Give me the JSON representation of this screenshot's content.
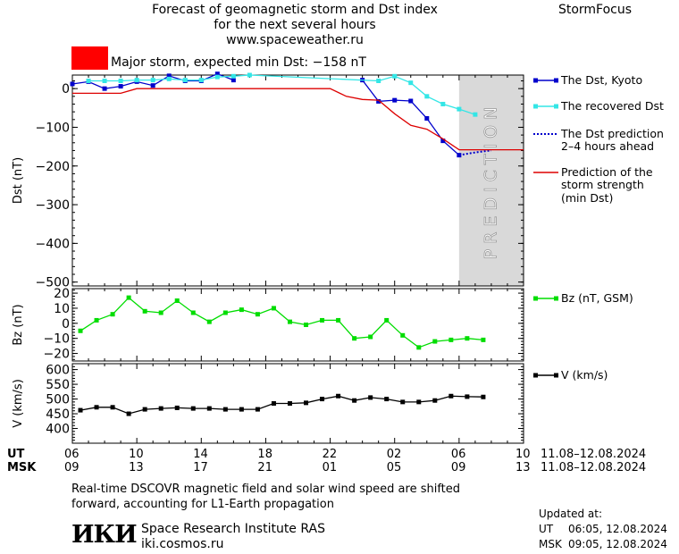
{
  "header": {
    "title_line1": "Forecast of geomagnetic storm and Dst index",
    "title_line2": "for the next several hours",
    "website": "www.spaceweather.ru",
    "brand": "StormFocus",
    "storm_text": "Major storm, expected min Dst: −158 nT",
    "storm_color": "#ff0000"
  },
  "prediction_label": "PREDICTION",
  "colors": {
    "dst_kyoto": "#0000cc",
    "dst_recovered": "#33e6e6",
    "dst_prediction": "#0000cc",
    "storm_strength": "#dd0000",
    "bz": "#00dd00",
    "v": "#000000",
    "prediction_band": "#d9d9d9"
  },
  "time_axis": {
    "ut_label": "UT",
    "msk_label": "MSK",
    "ut_ticks": [
      "06",
      "10",
      "14",
      "18",
      "22",
      "02",
      "06",
      "10"
    ],
    "msk_ticks": [
      "09",
      "13",
      "17",
      "21",
      "01",
      "05",
      "09",
      "13"
    ],
    "date_range": "11.08–12.08.2024"
  },
  "chart_data": [
    {
      "type": "line",
      "ylabel": "Dst (nT)",
      "ylim": [
        -510,
        35
      ],
      "yticks": [
        0,
        -100,
        -200,
        -300,
        -400,
        -500
      ],
      "x_unit": "hours since 06 UT, 11.08.2024",
      "prediction_region_x": [
        24,
        28
      ],
      "series": [
        {
          "name": "The Dst, Kyoto",
          "key": "kyoto",
          "marker": "square",
          "x": [
            0,
            1,
            2,
            3,
            4,
            5,
            6,
            7,
            8,
            9,
            10,
            11,
            18,
            19,
            20,
            21,
            22,
            23,
            24
          ],
          "y": [
            12,
            18,
            0,
            6,
            18,
            8,
            33,
            20,
            20,
            38,
            22,
            null,
            22,
            -33,
            -30,
            -32,
            -77,
            -135,
            -172
          ]
        },
        {
          "name": "The recovered Dst",
          "key": "recovered",
          "marker": "square",
          "x": [
            1,
            2,
            3,
            4,
            5,
            6,
            7,
            8,
            9,
            10,
            11,
            19,
            20,
            21,
            22,
            23,
            24,
            25
          ],
          "y": [
            20,
            20,
            20,
            22,
            22,
            25,
            22,
            22,
            30,
            32,
            35,
            20,
            32,
            15,
            -20,
            -40,
            -53,
            -67
          ]
        },
        {
          "name": "The Dst prediction 2–4 hours ahead",
          "key": "prediction",
          "marker": "none",
          "x": [
            24,
            25,
            26
          ],
          "y": [
            -172,
            -165,
            -160
          ]
        },
        {
          "name": "Prediction of the storm strength (min Dst)",
          "key": "strength",
          "marker": "none",
          "x": [
            0,
            3,
            4,
            16,
            17,
            18,
            19,
            20,
            21,
            22,
            23,
            24,
            28
          ],
          "y": [
            -12,
            -12,
            0,
            0,
            -20,
            -28,
            -30,
            -65,
            -95,
            -105,
            -130,
            -158,
            -158
          ]
        }
      ]
    },
    {
      "type": "line",
      "ylabel": "Bz (nT)",
      "ylim": [
        -25,
        23
      ],
      "yticks": [
        20,
        10,
        0,
        -10,
        -20
      ],
      "series": [
        {
          "name": "Bz (nT, GSM)",
          "key": "bz",
          "marker": "square",
          "x": [
            0.5,
            1.5,
            2.5,
            3.5,
            4.5,
            5.5,
            6.5,
            7.5,
            8.5,
            9.5,
            10.5,
            11.5,
            12.5,
            13.5,
            14.5,
            15.5,
            16.5,
            17.5,
            18.5,
            19.5,
            20.5,
            21.5,
            22.5,
            23.5,
            24.5,
            25.5
          ],
          "y": [
            -5,
            2,
            6,
            17,
            8,
            7,
            15,
            7,
            1,
            7,
            9,
            6,
            10,
            1,
            -1,
            2,
            2,
            -10,
            -9,
            2,
            -8,
            -16,
            -12,
            -11,
            -10,
            -11
          ]
        }
      ]
    },
    {
      "type": "line",
      "ylabel": "V (km/s)",
      "ylim": [
        350,
        620
      ],
      "yticks": [
        600,
        550,
        500,
        450,
        400
      ],
      "series": [
        {
          "name": "V (km/s)",
          "key": "v",
          "marker": "square",
          "x": [
            0.5,
            1.5,
            2.5,
            3.5,
            4.5,
            5.5,
            6.5,
            7.5,
            8.5,
            9.5,
            10.5,
            11.5,
            12.5,
            13.5,
            14.5,
            15.5,
            16.5,
            17.5,
            18.5,
            19.5,
            20.5,
            21.5,
            22.5,
            23.5,
            24.5,
            25.5
          ],
          "y": [
            462,
            472,
            472,
            450,
            465,
            468,
            470,
            468,
            468,
            465,
            465,
            465,
            485,
            485,
            487,
            500,
            510,
            495,
            505,
            500,
            490,
            490,
            495,
            510,
            508,
            507
          ]
        }
      ]
    }
  ],
  "legends": {
    "kyoto": "The Dst, Kyoto",
    "recovered": "The recovered Dst",
    "prediction_line1": "The Dst prediction",
    "prediction_line2": "2–4 hours ahead",
    "strength_line1": "Prediction of the",
    "strength_line2": "storm strength",
    "strength_line3": "(min Dst)",
    "bz": "Bz (nT, GSM)",
    "v": "V (km/s)"
  },
  "footer": {
    "note_line1": "Real-time DSCOVR magnetic field and solar wind speed are shifted",
    "note_line2": "forward, accounting for L1-Earth propagation",
    "logo": "ИКИ",
    "institute": "Space Research Institute RAS",
    "institute_url": "iki.cosmos.ru",
    "updated_label": "Updated at:",
    "updated_ut_label": "UT",
    "updated_ut": "06:05, 12.08.2024",
    "updated_msk_label": "MSK",
    "updated_msk": "09:05, 12.08.2024"
  }
}
